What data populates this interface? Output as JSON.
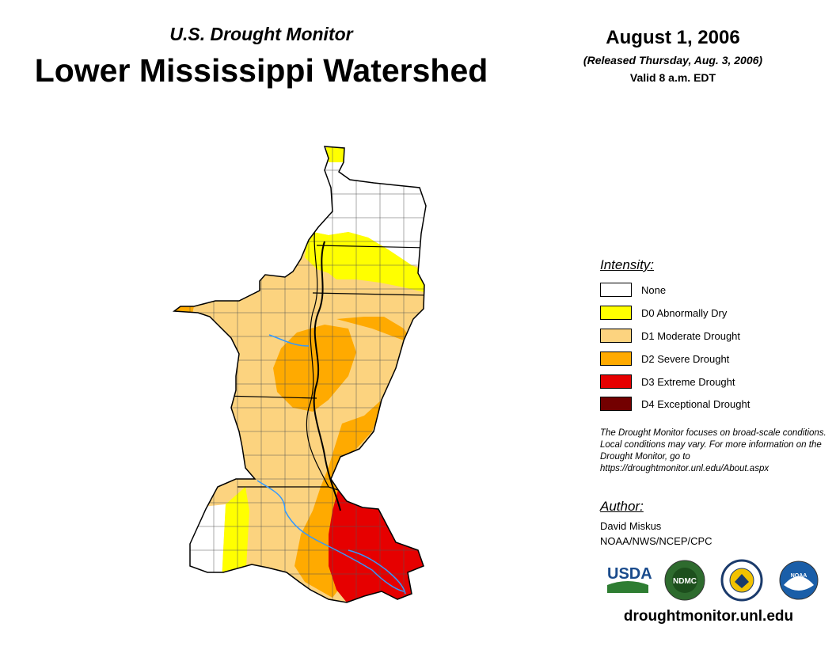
{
  "header": {
    "subtitle": "U.S. Drought Monitor",
    "title": "Lower Mississippi Watershed",
    "date": "August 1, 2006",
    "released": "(Released Thursday, Aug. 3, 2006)",
    "valid": "Valid 8 a.m. EDT"
  },
  "legend": {
    "title": "Intensity:",
    "items": [
      {
        "label": "None",
        "color": "#ffffff"
      },
      {
        "label": "D0 Abnormally Dry",
        "color": "#ffff00"
      },
      {
        "label": "D1 Moderate Drought",
        "color": "#fcd37f"
      },
      {
        "label": "D2 Severe Drought",
        "color": "#ffaa00"
      },
      {
        "label": "D3 Extreme Drought",
        "color": "#e60000"
      },
      {
        "label": "D4 Exceptional Drought",
        "color": "#730000"
      }
    ]
  },
  "disclaimer": "The Drought Monitor focuses on broad-scale conditions. Local conditions may vary. For more information on the Drought Monitor, go to https://droughtmonitor.unl.edu/About.aspx",
  "author": {
    "title": "Author:",
    "name": "David Miskus",
    "org": "NOAA/NWS/NCEP/CPC"
  },
  "logos": {
    "usda": "USDA",
    "ndmc": "NDMC",
    "noaa": "NOAA"
  },
  "url": "droughtmonitor.unl.edu",
  "colors": {
    "river": "#3399ff",
    "border": "#000000"
  }
}
